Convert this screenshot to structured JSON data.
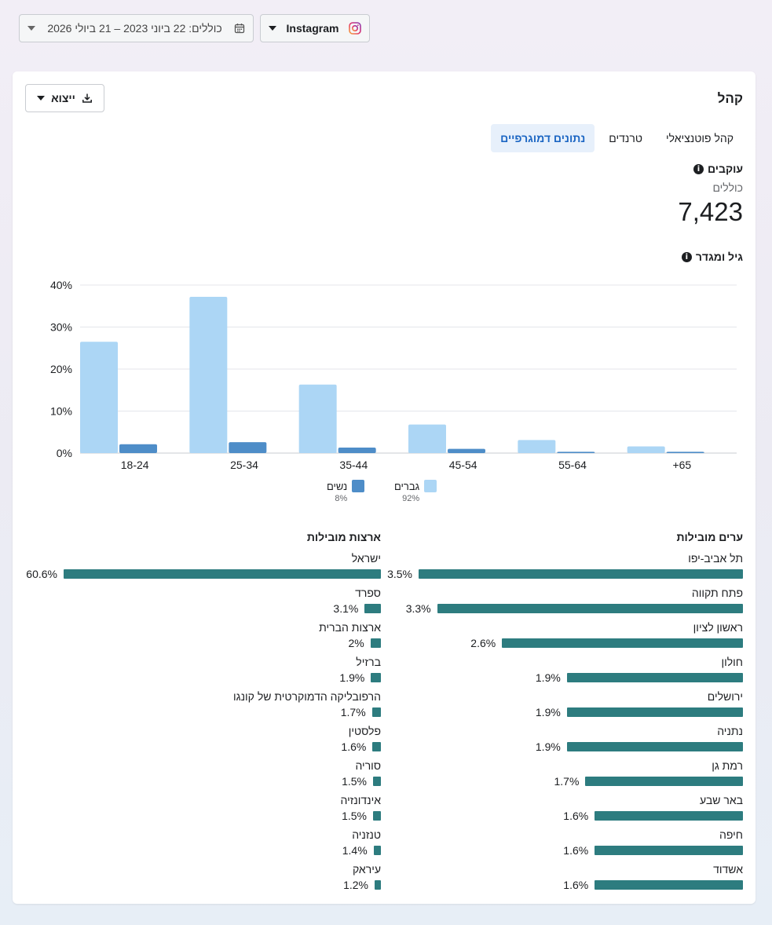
{
  "topbar": {
    "date_range": "כוללים: 22 ביוני 2023 – 21 ביולי 2026",
    "platform": "Instagram"
  },
  "card": {
    "title": "קהל",
    "export_label": "ייצוא",
    "tabs": [
      {
        "label": "נתונים דמוגרפיים",
        "active": true
      },
      {
        "label": "טרנדים",
        "active": false
      },
      {
        "label": "קהל פוטנציאלי",
        "active": false
      }
    ]
  },
  "followers": {
    "title": "עוקבים",
    "subtitle": "כוללים",
    "count": "7,423"
  },
  "age_gender": {
    "title": "גיל ומגדר"
  },
  "chart_data": {
    "type": "bar",
    "categories": [
      "18-24",
      "25-34",
      "35-44",
      "45-54",
      "55-64",
      "+65"
    ],
    "series": [
      {
        "name": "גברים",
        "values": [
          26.5,
          37.2,
          16.3,
          6.8,
          3.1,
          1.6
        ],
        "color": "#acd6f5"
      },
      {
        "name": "נשים",
        "values": [
          2.1,
          2.6,
          1.3,
          1.0,
          0.3,
          0.3
        ],
        "color": "#4e8dc8"
      }
    ],
    "ylim": [
      0,
      40
    ],
    "yticks": [
      0,
      10,
      20,
      30,
      40
    ],
    "ytick_labels": [
      "0%",
      "10%",
      "20%",
      "30%",
      "40%"
    ],
    "grid": true,
    "legend": [
      {
        "name": "גברים",
        "percent": "92%",
        "color": "#acd6f5"
      },
      {
        "name": "נשים",
        "percent": "8%",
        "color": "#4e8dc8"
      }
    ]
  },
  "cities": {
    "title": "ערים מובילות",
    "items": [
      {
        "name": "תל אביב-יפו",
        "value": 3.5,
        "label": "3.5%"
      },
      {
        "name": "פתח תקווה",
        "value": 3.3,
        "label": "3.3%"
      },
      {
        "name": "ראשון לציון",
        "value": 2.6,
        "label": "2.6%"
      },
      {
        "name": "חולון",
        "value": 1.9,
        "label": "1.9%"
      },
      {
        "name": "ירושלים",
        "value": 1.9,
        "label": "1.9%"
      },
      {
        "name": "נתניה",
        "value": 1.9,
        "label": "1.9%"
      },
      {
        "name": "רמת גן",
        "value": 1.7,
        "label": "1.7%"
      },
      {
        "name": "באר שבע",
        "value": 1.6,
        "label": "1.6%"
      },
      {
        "name": "חיפה",
        "value": 1.6,
        "label": "1.6%"
      },
      {
        "name": "אשדוד",
        "value": 1.6,
        "label": "1.6%"
      }
    ]
  },
  "countries": {
    "title": "ארצות מובילות",
    "items": [
      {
        "name": "ישראל",
        "value": 60.6,
        "label": "60.6%"
      },
      {
        "name": "ספרד",
        "value": 3.1,
        "label": "3.1%"
      },
      {
        "name": "ארצות הברית",
        "value": 2.0,
        "label": "2%"
      },
      {
        "name": "ברזיל",
        "value": 1.9,
        "label": "1.9%"
      },
      {
        "name": "הרפובליקה הדמוקרטית של קונגו",
        "value": 1.7,
        "label": "1.7%"
      },
      {
        "name": "פלסטין",
        "value": 1.6,
        "label": "1.6%"
      },
      {
        "name": "סוריה",
        "value": 1.5,
        "label": "1.5%"
      },
      {
        "name": "אינדונזיה",
        "value": 1.5,
        "label": "1.5%"
      },
      {
        "name": "טנזניה",
        "value": 1.4,
        "label": "1.4%"
      },
      {
        "name": "עיראק",
        "value": 1.2,
        "label": "1.2%"
      }
    ]
  }
}
